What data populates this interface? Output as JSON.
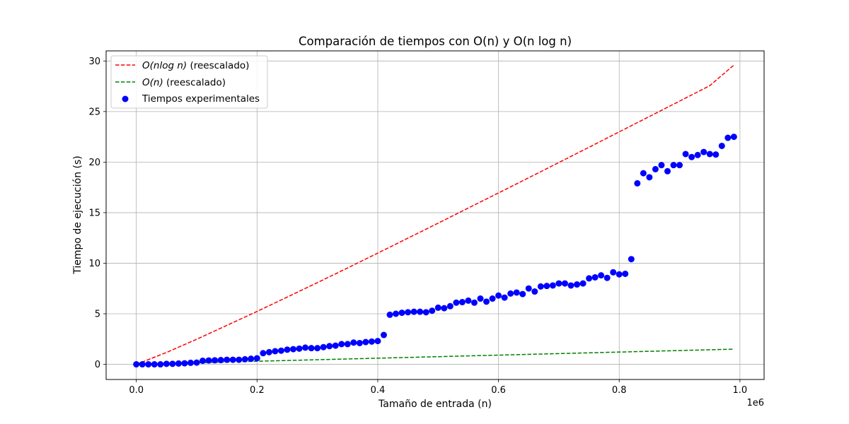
{
  "chart_data": {
    "type": "scatter",
    "title": "Comparación de tiempos con O(n) y O(n log n)",
    "xlabel": "Tamaño de entrada (n)",
    "ylabel": "Tiempo de ejecución (s)",
    "x_offset_text": "1e6",
    "xlim": [
      -50000,
      1040000
    ],
    "ylim": [
      -1.5,
      31
    ],
    "x_tick_values": [
      0,
      200000,
      400000,
      600000,
      800000,
      1000000
    ],
    "x_tick_labels": [
      "0.0",
      "0.2",
      "0.4",
      "0.6",
      "0.8",
      "1.0"
    ],
    "y_tick_values": [
      0,
      5,
      10,
      15,
      20,
      25,
      30
    ],
    "y_tick_labels": [
      "0",
      "5",
      "10",
      "15",
      "20",
      "25",
      "30"
    ],
    "grid": true,
    "legend_position": "upper left",
    "series": [
      {
        "name": "O(n log n) (reescalado)",
        "legend_main": "O(nlog n)",
        "legend_suffix": " (reescalado)",
        "kind": "line",
        "style": "dashed",
        "color": "#ff0000",
        "x": [
          0,
          50000,
          100000,
          150000,
          200000,
          250000,
          300000,
          350000,
          400000,
          450000,
          500000,
          550000,
          600000,
          650000,
          700000,
          750000,
          800000,
          850000,
          900000,
          950000,
          990000
        ],
        "y": [
          0,
          1.17,
          2.48,
          3.85,
          5.23,
          6.65,
          8.08,
          9.53,
          11.0,
          12.48,
          13.96,
          15.46,
          16.95,
          18.45,
          19.96,
          21.47,
          22.99,
          24.51,
          26.03,
          27.56,
          29.6
        ]
      },
      {
        "name": "O(n) (reescalado)",
        "legend_main": "O(n)",
        "legend_suffix": " (reescalado)",
        "kind": "line",
        "style": "dashed",
        "color": "#008000",
        "x": [
          0,
          990000
        ],
        "y": [
          0,
          1.5
        ]
      },
      {
        "name": "Tiempos experimentales",
        "kind": "scatter",
        "color": "#0000ff",
        "x": [
          0,
          10000,
          20000,
          30000,
          40000,
          50000,
          60000,
          70000,
          80000,
          90000,
          100000,
          110000,
          120000,
          130000,
          140000,
          150000,
          160000,
          170000,
          180000,
          190000,
          200000,
          210000,
          220000,
          230000,
          240000,
          250000,
          260000,
          270000,
          280000,
          290000,
          300000,
          310000,
          320000,
          330000,
          340000,
          350000,
          360000,
          370000,
          380000,
          390000,
          400000,
          410000,
          420000,
          430000,
          440000,
          450000,
          460000,
          470000,
          480000,
          490000,
          500000,
          510000,
          520000,
          530000,
          540000,
          550000,
          560000,
          570000,
          580000,
          590000,
          600000,
          610000,
          620000,
          630000,
          640000,
          650000,
          660000,
          670000,
          680000,
          690000,
          700000,
          710000,
          720000,
          730000,
          740000,
          750000,
          760000,
          770000,
          780000,
          790000,
          800000,
          810000,
          820000,
          830000,
          840000,
          850000,
          860000,
          870000,
          880000,
          890000,
          900000,
          910000,
          920000,
          930000,
          940000,
          950000,
          960000,
          970000,
          980000,
          990000
        ],
        "y": [
          0.0,
          0.0,
          0.0,
          0.0,
          0.0,
          0.05,
          0.05,
          0.08,
          0.1,
          0.15,
          0.17,
          0.35,
          0.38,
          0.4,
          0.42,
          0.45,
          0.45,
          0.45,
          0.5,
          0.55,
          0.6,
          1.1,
          1.2,
          1.3,
          1.35,
          1.45,
          1.5,
          1.55,
          1.65,
          1.6,
          1.6,
          1.7,
          1.8,
          1.85,
          2.0,
          2.0,
          2.15,
          2.1,
          2.2,
          2.25,
          2.3,
          2.9,
          4.9,
          5.0,
          5.1,
          5.15,
          5.2,
          5.2,
          5.15,
          5.3,
          5.6,
          5.55,
          5.75,
          6.1,
          6.15,
          6.3,
          6.1,
          6.5,
          6.2,
          6.5,
          6.8,
          6.6,
          7.0,
          7.1,
          6.95,
          7.5,
          7.2,
          7.7,
          7.75,
          7.8,
          8.0,
          8.0,
          7.8,
          7.9,
          8.0,
          8.5,
          8.6,
          8.8,
          8.55,
          9.1,
          8.9,
          8.95,
          10.4,
          17.9,
          18.9,
          18.5,
          19.3,
          19.7,
          19.1,
          19.7,
          19.7,
          20.8,
          20.5,
          20.7,
          21.0,
          20.8,
          20.75,
          21.6,
          22.4,
          22.5
        ]
      }
    ]
  }
}
